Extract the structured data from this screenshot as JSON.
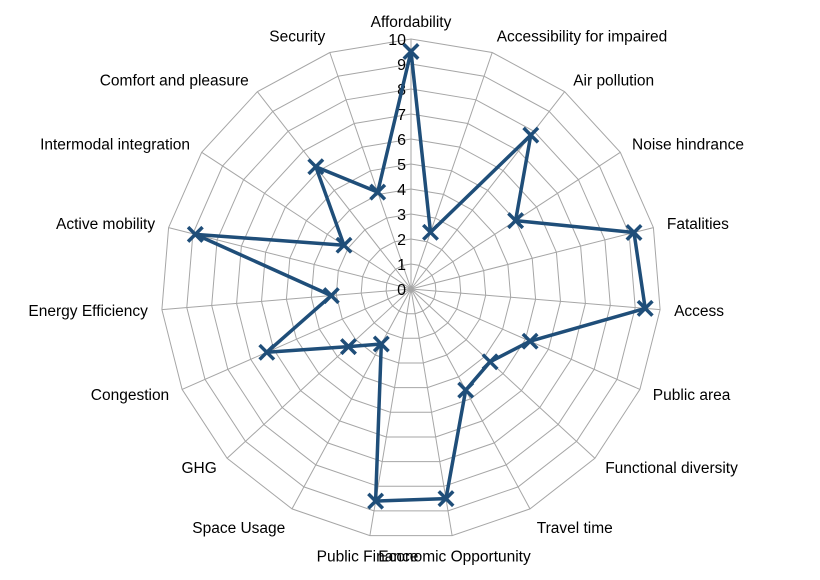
{
  "chart_data": {
    "type": "radar",
    "title": "",
    "categories": [
      "Affordability",
      "Accessibility for impaired",
      "Air pollution",
      "Noise hindrance",
      "Fatalities",
      "Access",
      "Public area",
      "Functional diversity",
      "Travel time",
      "Economic Opportunity",
      "Public Finance",
      "Space Usage",
      "GHG",
      "Congestion",
      "Energy Efficiency",
      "Active mobility",
      "Intermodal integration",
      "Comfort and pleasure",
      "Security"
    ],
    "series": [
      {
        "values": [
          9.5,
          2.4,
          7.8,
          5.0,
          9.2,
          9.4,
          5.2,
          4.3,
          4.6,
          8.5,
          8.6,
          2.5,
          3.4,
          6.3,
          3.2,
          8.9,
          3.2,
          6.2,
          4.1
        ]
      }
    ],
    "rlim": [
      0,
      10
    ],
    "ticks": [
      "0",
      "1",
      "2",
      "3",
      "4",
      "5",
      "6",
      "7",
      "8",
      "9",
      "10"
    ],
    "grid": true,
    "legend": "none",
    "colors": {
      "series": "#1f4e79",
      "grid": "#a6a6a6"
    },
    "marker": "x-icon"
  }
}
